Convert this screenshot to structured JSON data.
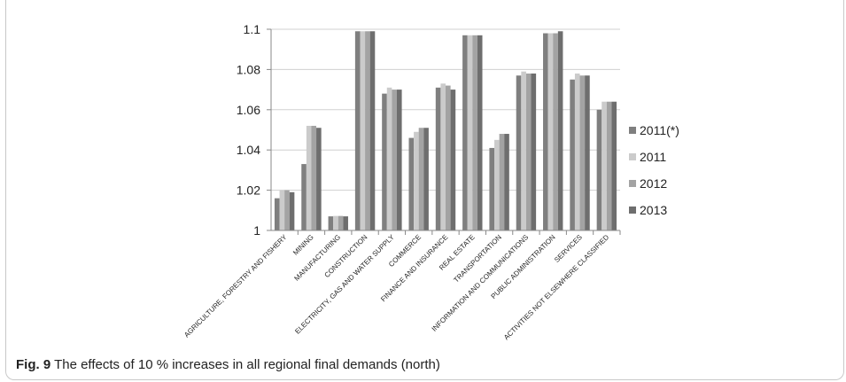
{
  "caption": {
    "label": "Fig. 9",
    "text": "The effects of 10 % increases in all regional final demands (north)"
  },
  "chart_data": {
    "type": "bar",
    "title": "",
    "xlabel": "",
    "ylabel": "",
    "ylim": [
      1,
      1.1
    ],
    "yticks": [
      "1",
      "1.02",
      "1.04",
      "1.06",
      "1.08",
      "1.1"
    ],
    "grid": true,
    "legend_position": "right",
    "categories": [
      "AGRICULTURE, FORESTRY AND FISHERY",
      "MINING",
      "MANUFACTURING",
      "CONSTRUCTION",
      "ELECTRICITY, GAS AND WATER SUPPLY",
      "COMMERCE",
      "FINANCE AND INSURANCE",
      "REAL ESTATE",
      "TRANSPORTATION",
      "INFORMATION AND COMMUNICATIONS",
      "PUBLIC ADMINISTRATION",
      "SERVICES",
      "ACTIVITIES NOT ELSEWHERE CLASSIFIED"
    ],
    "series": [
      {
        "name": "2011(*)",
        "color": "#7f7f7f",
        "values": [
          1.016,
          1.033,
          1.007,
          1.099,
          1.068,
          1.046,
          1.071,
          1.097,
          1.041,
          1.077,
          1.098,
          1.075,
          1.06
        ]
      },
      {
        "name": "2011",
        "color": "#cbcbcb",
        "values": [
          1.02,
          1.052,
          1.0072,
          1.099,
          1.071,
          1.049,
          1.073,
          1.097,
          1.045,
          1.079,
          1.098,
          1.078,
          1.064
        ]
      },
      {
        "name": "2012",
        "color": "#a3a3a3",
        "values": [
          1.02,
          1.052,
          1.0072,
          1.099,
          1.07,
          1.051,
          1.072,
          1.097,
          1.048,
          1.078,
          1.098,
          1.077,
          1.064
        ]
      },
      {
        "name": "2013",
        "color": "#6e6e6e",
        "values": [
          1.019,
          1.051,
          1.007,
          1.099,
          1.07,
          1.051,
          1.07,
          1.097,
          1.048,
          1.078,
          1.099,
          1.077,
          1.064
        ]
      }
    ]
  }
}
